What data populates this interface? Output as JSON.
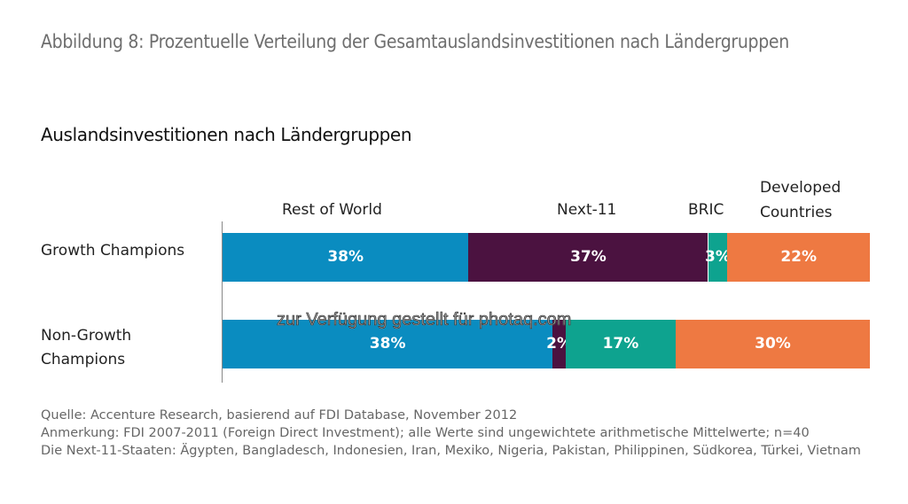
{
  "figure_title": "Abbildung 8: Prozentuelle Verteilung der Gesamtauslandsinvestitionen nach Ländergruppen",
  "chart_data": {
    "type": "bar",
    "orientation": "horizontal",
    "stacked": true,
    "title": "Auslandsinvestitionen nach Ländergruppen",
    "xlabel": "",
    "ylabel": "",
    "categories": [
      "Growth Champions",
      "Non-Growth Champions"
    ],
    "series": [
      {
        "name": "Rest of World",
        "color": "#0a8cc0",
        "values": [
          38,
          38
        ],
        "labels": [
          "38%",
          "38%"
        ]
      },
      {
        "name": "Next-11",
        "color": "#4b1240",
        "values": [
          37,
          2
        ],
        "labels": [
          "37%",
          "2%"
        ]
      },
      {
        "name": "BRIC",
        "color": "#0ea38f",
        "values": [
          3,
          17
        ],
        "labels": [
          "3%",
          "17%"
        ]
      },
      {
        "name": "Developed Countries",
        "color": "#ee7942",
        "values": [
          22,
          30
        ],
        "labels": [
          "22%",
          "30%"
        ]
      }
    ],
    "legend_position": "top",
    "grid": false,
    "unit": "%"
  },
  "watermark": "zur Verfügung gestellt für photaq.com",
  "notes": [
    "Quelle: Accenture Research, basierend auf FDI Database, November 2012",
    "Anmerkung: FDI 2007-2011 (Foreign Direct Investment); alle Werte sind ungewichtete arithmetische Mittelwerte; n=40",
    "Die Next-11-Staaten: Ägypten, Bangladesch, Indonesien, Iran, Mexiko, Nigeria, Pakistan, Philippinen, Südkorea, Türkei, Vietnam"
  ]
}
